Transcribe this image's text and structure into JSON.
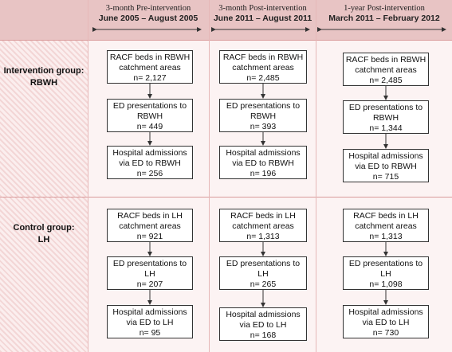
{
  "columns": [
    {
      "title": "3-month Pre-intervention",
      "dates": "June 2005 – August 2005"
    },
    {
      "title": "3-month Post-intervention",
      "dates": "June 2011 – August 2011"
    },
    {
      "title": "1-year Post-intervention",
      "dates": "March 2011 – February 2012"
    }
  ],
  "groups": [
    {
      "label_line1": "Intervention group:",
      "label_line2": "RBWH"
    },
    {
      "label_line1": "Control group:",
      "label_line2": "LH"
    }
  ],
  "boxes": {
    "rbwh": [
      [
        {
          "l1": "RACF beds in RBWH",
          "l2": "catchment areas",
          "l3": "n= 2,127"
        },
        {
          "l1": "ED presentations to",
          "l2": "RBWH",
          "l3": "n= 449"
        },
        {
          "l1": "Hospital admissions",
          "l2": "via ED to RBWH",
          "l3": "n= 256"
        }
      ],
      [
        {
          "l1": "RACF beds in RBWH",
          "l2": "catchment areas",
          "l3": "n= 2,485"
        },
        {
          "l1": "ED presentations to",
          "l2": "RBWH",
          "l3": "n= 393"
        },
        {
          "l1": "Hospital admissions",
          "l2": "via ED to RBWH",
          "l3": "n= 196"
        }
      ],
      [
        {
          "l1": "RACF beds in RBWH",
          "l2": "catchment areas",
          "l3": "n= 2,485"
        },
        {
          "l1": "ED presentations to",
          "l2": "RBWH",
          "l3": "n= 1,344"
        },
        {
          "l1": "Hospital admissions",
          "l2": "via ED to RBWH",
          "l3": "n= 715"
        }
      ]
    ],
    "lh": [
      [
        {
          "l1": "RACF beds in LH",
          "l2": "catchment areas",
          "l3": "n= 921"
        },
        {
          "l1": "ED presentations to",
          "l2": "LH",
          "l3": "n= 207"
        },
        {
          "l1": "Hospital admissions",
          "l2": "via ED to LH",
          "l3": "n= 95"
        }
      ],
      [
        {
          "l1": "RACF beds in LH",
          "l2": "catchment areas",
          "l3": "n= 1,313"
        },
        {
          "l1": "ED presentations to",
          "l2": "LH",
          "l3": "n= 265"
        },
        {
          "l1": "Hospital admissions",
          "l2": "via ED to LH",
          "l3": "n= 168"
        }
      ],
      [
        {
          "l1": "RACF beds in LH",
          "l2": "catchment areas",
          "l3": "n= 1,313"
        },
        {
          "l1": "ED presentations to",
          "l2": "LH",
          "l3": "n= 1,098"
        },
        {
          "l1": "Hospital admissions",
          "l2": "via ED to LH",
          "l3": "n= 730"
        }
      ]
    ]
  }
}
